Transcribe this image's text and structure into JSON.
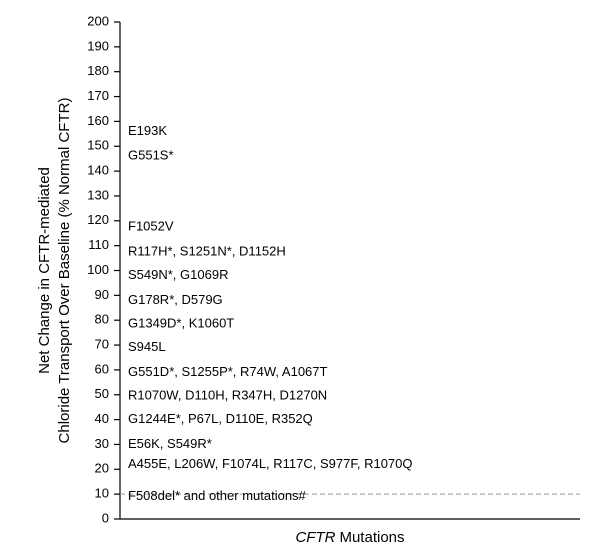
{
  "chart_data": {
    "type": "annotated-axis",
    "ylabel": [
      "Net Change in CFTR-mediated",
      "Chloride Transport Over Baseline (% Normal CFTR)"
    ],
    "xlabel": [
      {
        "text": "CFTR",
        "italic": true
      },
      {
        "text": "Mutations",
        "italic": false
      }
    ],
    "ylim": [
      0,
      200
    ],
    "yticks": [
      0,
      10,
      20,
      30,
      40,
      50,
      60,
      70,
      80,
      90,
      100,
      110,
      120,
      130,
      140,
      150,
      160,
      170,
      180,
      190,
      200
    ],
    "reference_line": {
      "value": 10,
      "style": "dashed",
      "color": "#999999"
    },
    "annotations": [
      {
        "text": "E193K",
        "y": 156
      },
      {
        "text": "G551S*",
        "y": 146
      },
      {
        "text": "F1052V",
        "y": 117.5
      },
      {
        "text": "R117H*, S1251N*, D1152H",
        "y": 107.5
      },
      {
        "text": "S549N*, G1069R",
        "y": 98
      },
      {
        "text": "G178R*, D579G",
        "y": 88
      },
      {
        "text": "G1349D*, K1060T",
        "y": 78.5
      },
      {
        "text": "S945L",
        "y": 69
      },
      {
        "text": "G551D*, S1255P*, R74W, A1067T",
        "y": 59
      },
      {
        "text": "R1070W, D110H, R347H, D1270N",
        "y": 49.5
      },
      {
        "text": "G1244E*, P67L, D110E, R352Q",
        "y": 40
      },
      {
        "text": "E56K, S549R*",
        "y": 30
      },
      {
        "text": "A455E, L206W, F1074L, R117C, S977F, R1070Q",
        "y": 22
      },
      {
        "text": "F508del* and other mutations#",
        "y": 9
      }
    ]
  }
}
